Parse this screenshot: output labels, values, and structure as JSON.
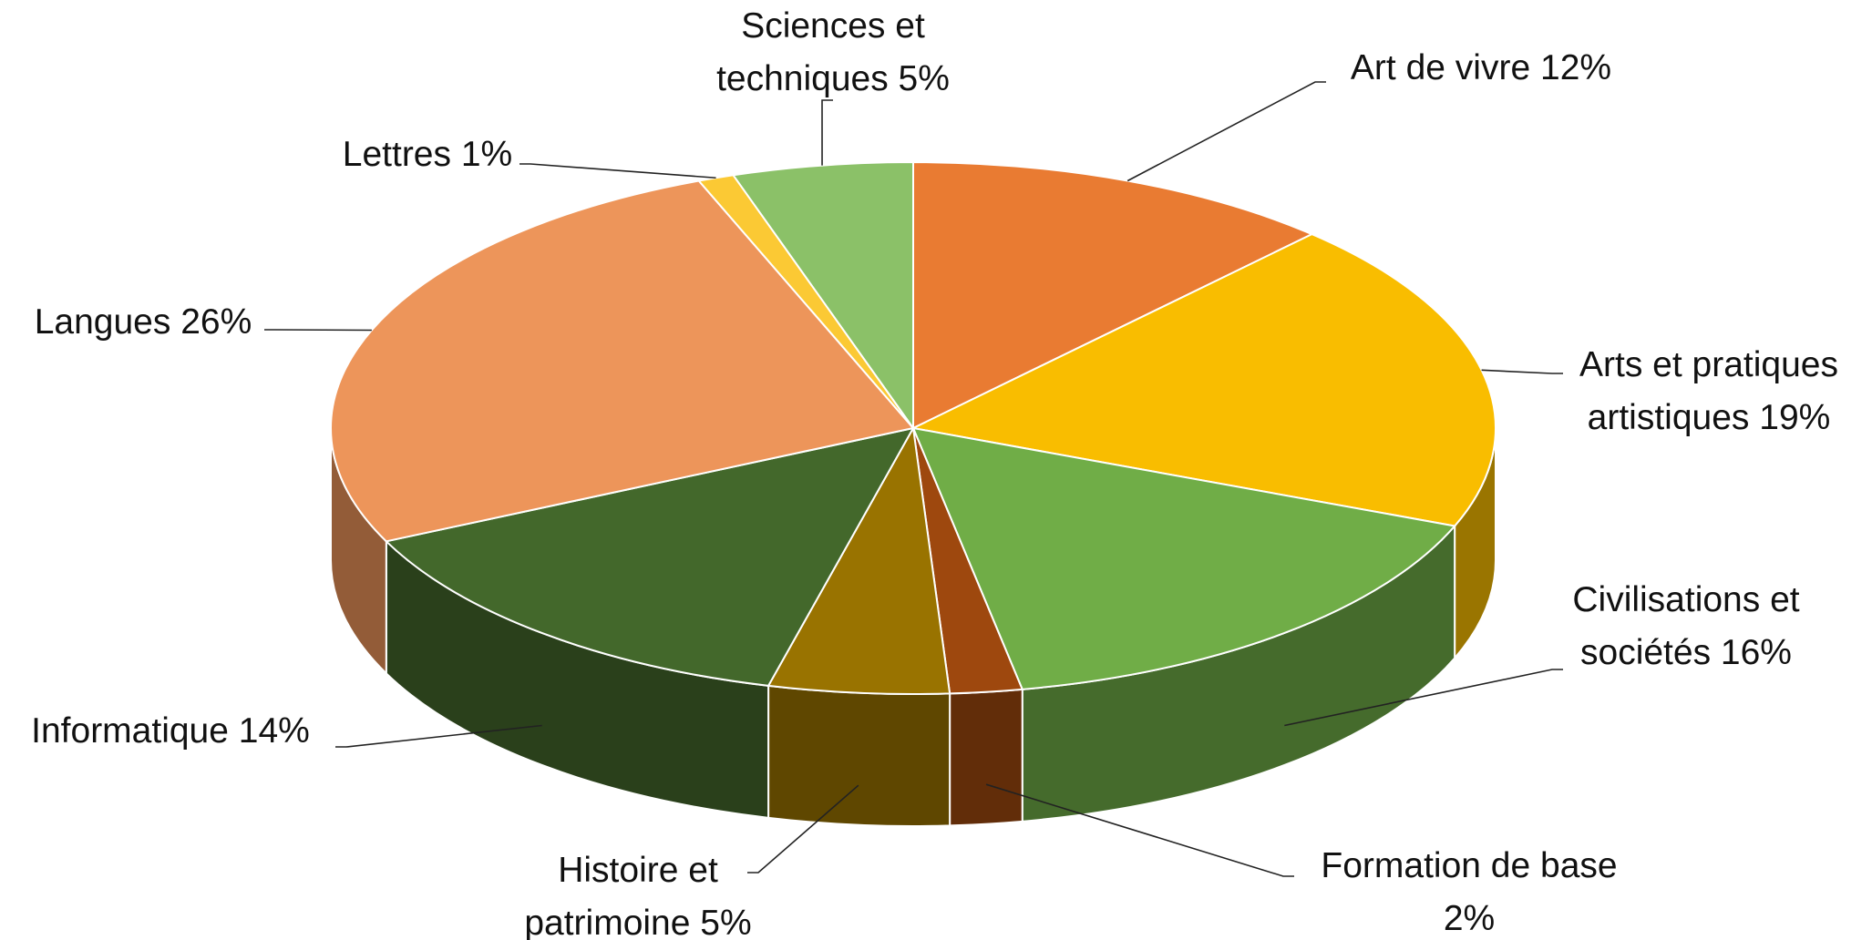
{
  "chart_data": {
    "type": "pie3d",
    "categories": [
      "Art de vivre",
      "Arts et pratiques artistiques",
      "Civilisations et sociétés",
      "Formation de base",
      "Histoire et patrimoine",
      "Informatique",
      "Langues",
      "Lettres",
      "Sciences et techniques"
    ],
    "values": [
      12,
      19,
      16,
      2,
      5,
      14,
      26,
      1,
      5
    ],
    "value_labels": [
      "12%",
      "19%",
      "16%",
      "2%",
      "5%",
      "14%",
      "26%",
      "1%",
      "5%"
    ],
    "colors": [
      "#e97b32",
      "#f9bd00",
      "#70ad47",
      "#9e480e",
      "#997300",
      "#43682b",
      "#ed955a",
      "#fbc934",
      "#8bc168"
    ]
  }
}
